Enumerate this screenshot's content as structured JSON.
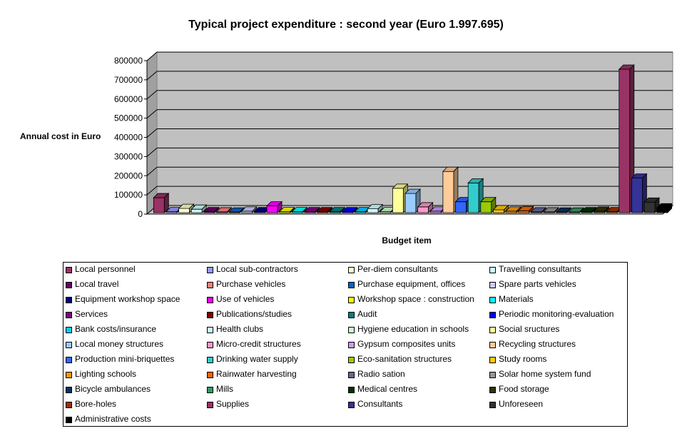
{
  "chart_data": {
    "type": "bar",
    "title": "Typical project expenditure : second year (Euro 1.997.695)",
    "xlabel": "Budget item",
    "ylabel": "Annual cost in Euro",
    "ylim": [
      0,
      800000
    ],
    "yticks": [
      "0",
      "100000",
      "200000",
      "300000",
      "400000",
      "500000",
      "600000",
      "700000",
      "800000"
    ],
    "grid": true,
    "legend_position": "bottom",
    "series": [
      {
        "name": "Local personnel",
        "value": 78000,
        "color": "#993366"
      },
      {
        "name": "Local sub-contractors",
        "value": 5000,
        "color": "#9999FF"
      },
      {
        "name": "Per-diem consultants",
        "value": 22000,
        "color": "#FFFFCC"
      },
      {
        "name": "Travelling consultants",
        "value": 18000,
        "color": "#CCFFFF"
      },
      {
        "name": "Local travel",
        "value": 5000,
        "color": "#660066"
      },
      {
        "name": "Purchase vehicles",
        "value": 4000,
        "color": "#FF8080"
      },
      {
        "name": "Purchase equipment, offices",
        "value": 3000,
        "color": "#0066CC"
      },
      {
        "name": "Spare parts vehicles",
        "value": 8000,
        "color": "#CCCCFF"
      },
      {
        "name": "Equipment workshop space",
        "value": 5000,
        "color": "#000080"
      },
      {
        "name": "Use of vehicles",
        "value": 35000,
        "color": "#FF00FF"
      },
      {
        "name": "Workshop space : construction",
        "value": 5000,
        "color": "#FFFF00"
      },
      {
        "name": "Materials",
        "value": 5000,
        "color": "#00FFFF"
      },
      {
        "name": "Services",
        "value": 5000,
        "color": "#800080"
      },
      {
        "name": "Publications/studies",
        "value": 5000,
        "color": "#800000"
      },
      {
        "name": "Audit",
        "value": 5000,
        "color": "#008080"
      },
      {
        "name": "Periodic monitoring-evaluation",
        "value": 5000,
        "color": "#0000FF"
      },
      {
        "name": "Bank costs/insurance",
        "value": 5000,
        "color": "#00CCFF"
      },
      {
        "name": "Health clubs",
        "value": 20000,
        "color": "#CCFFFF"
      },
      {
        "name": "Hygiene education in schools",
        "value": 5000,
        "color": "#CCFFCC"
      },
      {
        "name": "Social sructures",
        "value": 127000,
        "color": "#FFFF99"
      },
      {
        "name": "Local money structures",
        "value": 100000,
        "color": "#99CCFF"
      },
      {
        "name": "Micro-credit structures",
        "value": 30000,
        "color": "#FF99CC"
      },
      {
        "name": "Gypsum composites units",
        "value": 8000,
        "color": "#CC99FF"
      },
      {
        "name": "Recycling structures",
        "value": 215000,
        "color": "#FFCC99"
      },
      {
        "name": "Production mini-briquettes",
        "value": 57000,
        "color": "#3366FF"
      },
      {
        "name": "Drinking water supply",
        "value": 155000,
        "color": "#33CCCC"
      },
      {
        "name": "Eco-sanitation structures",
        "value": 57000,
        "color": "#99CC00"
      },
      {
        "name": "Study rooms",
        "value": 15000,
        "color": "#FFCC00"
      },
      {
        "name": "Lighting schools",
        "value": 8000,
        "color": "#FF9900"
      },
      {
        "name": "Rainwater harvesting",
        "value": 10000,
        "color": "#FF6600"
      },
      {
        "name": "Radio sation",
        "value": 4000,
        "color": "#666699"
      },
      {
        "name": "Solar home system fund",
        "value": 4000,
        "color": "#969696"
      },
      {
        "name": "Bicycle ambulances",
        "value": 3000,
        "color": "#003366"
      },
      {
        "name": "Mills",
        "value": 3000,
        "color": "#339966"
      },
      {
        "name": "Medical centres",
        "value": 5000,
        "color": "#003300"
      },
      {
        "name": "Food storage",
        "value": 8000,
        "color": "#333300"
      },
      {
        "name": "Bore-holes",
        "value": 5000,
        "color": "#993300"
      },
      {
        "name": "Supplies",
        "value": 748000,
        "color": "#993366"
      },
      {
        "name": "Consultants",
        "value": 180000,
        "color": "#333399"
      },
      {
        "name": "Unforeseen",
        "value": 55000,
        "color": "#333333"
      },
      {
        "name": "Administrative costs",
        "value": 25000,
        "color": "#000000"
      }
    ]
  }
}
